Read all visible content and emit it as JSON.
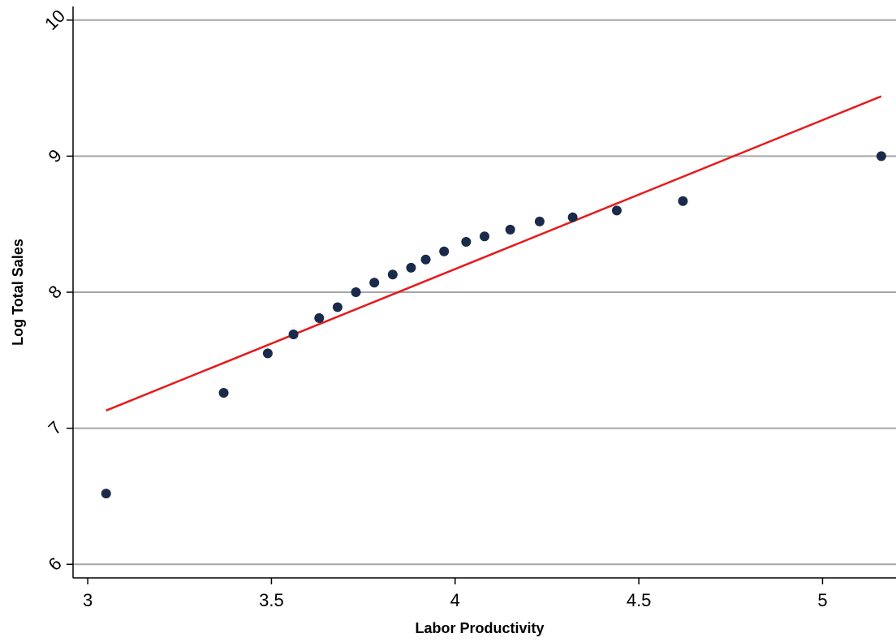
{
  "chart_data": {
    "type": "scatter",
    "title": "",
    "xlabel": "Labor Productivity",
    "ylabel": "Log Total Sales",
    "xlim": [
      2.96,
      5.2
    ],
    "ylim": [
      5.9,
      10.1
    ],
    "xticks": [
      3,
      3.5,
      4,
      4.5,
      5
    ],
    "xtick_labels": [
      "3",
      "3.5",
      "4",
      "4.5",
      "5"
    ],
    "yticks": [
      6,
      7,
      8,
      9,
      10
    ],
    "ytick_labels": [
      "6",
      "7",
      "8",
      "9",
      "10"
    ],
    "grid": "horizontal",
    "legend": "none",
    "series": [
      {
        "type": "scatter",
        "color": "#1a2a4a",
        "x": [
          3.05,
          3.37,
          3.49,
          3.56,
          3.63,
          3.68,
          3.73,
          3.78,
          3.83,
          3.88,
          3.92,
          3.97,
          4.03,
          4.08,
          4.15,
          4.23,
          4.32,
          4.44,
          4.62,
          5.16
        ],
        "y": [
          6.52,
          7.26,
          7.55,
          7.69,
          7.81,
          7.89,
          8.0,
          8.07,
          8.13,
          8.18,
          8.24,
          8.3,
          8.37,
          8.41,
          8.46,
          8.52,
          8.55,
          8.6,
          8.67,
          9.0
        ]
      },
      {
        "type": "line",
        "color": "#e8191a",
        "x": [
          3.05,
          5.16
        ],
        "y": [
          7.13,
          9.44
        ]
      }
    ]
  }
}
